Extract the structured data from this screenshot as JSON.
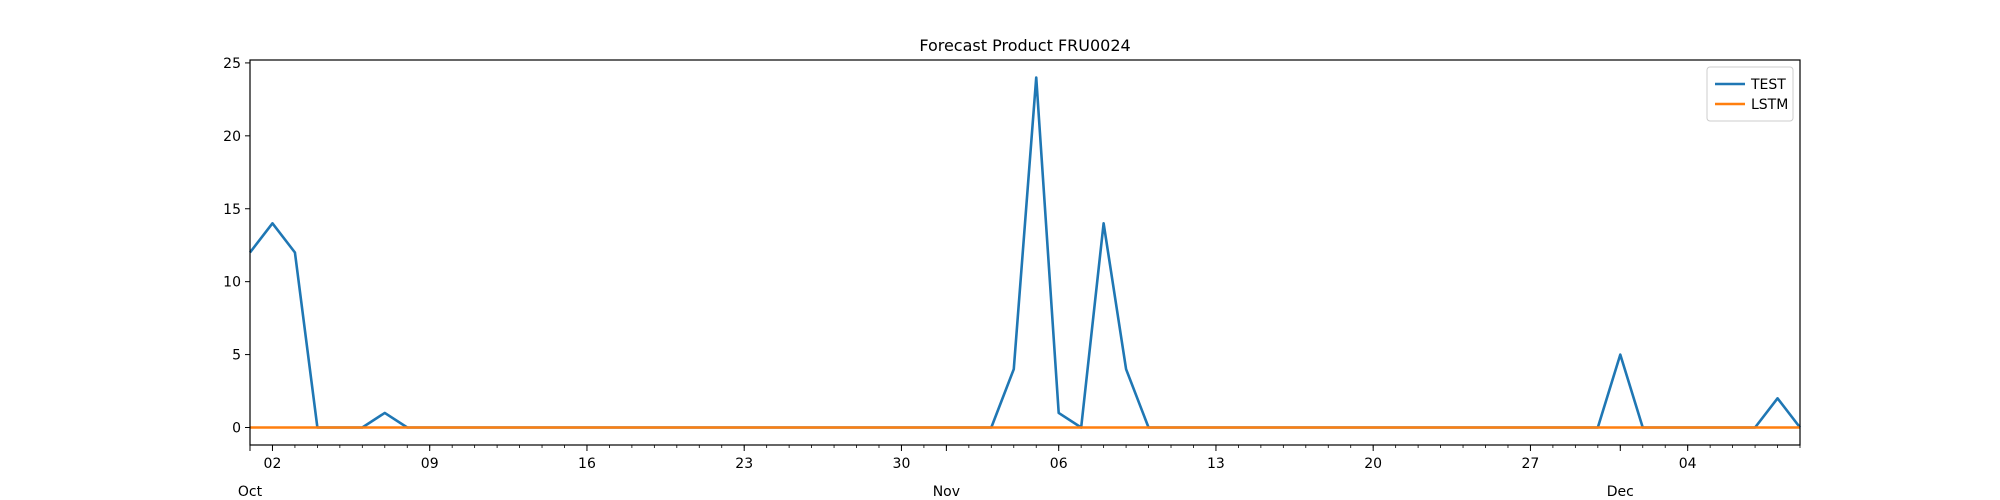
{
  "chart_data": {
    "type": "line",
    "title": "Forecast Product FRU0024",
    "xlabel": "",
    "ylabel": "",
    "x_start": "2023-10-01",
    "x_end": "2023-12-09",
    "xlim": [
      "2023-10-01",
      "2023-12-09"
    ],
    "ylim": [
      -1.2,
      25.2
    ],
    "y_ticks": [
      0,
      5,
      10,
      15,
      20,
      25
    ],
    "x_ticks": [
      {
        "date": "2023-10-02",
        "label": "02"
      },
      {
        "date": "2023-10-09",
        "label": "09"
      },
      {
        "date": "2023-10-16",
        "label": "16"
      },
      {
        "date": "2023-10-23",
        "label": "23"
      },
      {
        "date": "2023-10-30",
        "label": "30"
      },
      {
        "date": "2023-11-06",
        "label": "06"
      },
      {
        "date": "2023-11-13",
        "label": "13"
      },
      {
        "date": "2023-11-20",
        "label": "20"
      },
      {
        "date": "2023-11-27",
        "label": "27"
      },
      {
        "date": "2023-12-04",
        "label": "04"
      }
    ],
    "month_labels": [
      {
        "date": "2023-10-01",
        "label": "Oct"
      },
      {
        "date": "2023-11-01",
        "label": "Nov"
      },
      {
        "date": "2023-12-01",
        "label": "Dec"
      }
    ],
    "grid": false,
    "legend": "top-right",
    "series": [
      {
        "name": "TEST",
        "color": "#1f77b4",
        "values": [
          12,
          14,
          12,
          0,
          0,
          0,
          1,
          0,
          0,
          0,
          0,
          0,
          0,
          0,
          0,
          0,
          0,
          0,
          0,
          0,
          0,
          0,
          0,
          0,
          0,
          0,
          0,
          0,
          0,
          0,
          0,
          0,
          0,
          0,
          4,
          24,
          1,
          0,
          14,
          4,
          0,
          0,
          0,
          0,
          0,
          0,
          0,
          0,
          0,
          0,
          0,
          0,
          0,
          0,
          0,
          0,
          0,
          0,
          0,
          0,
          0,
          5,
          0,
          0,
          0,
          0,
          0,
          0,
          2,
          0
        ]
      },
      {
        "name": "LSTM",
        "color": "#ff7f0e",
        "values": [
          0,
          0,
          0,
          0,
          0,
          0,
          0,
          0,
          0,
          0,
          0,
          0,
          0,
          0,
          0,
          0,
          0,
          0,
          0,
          0,
          0,
          0,
          0,
          0,
          0,
          0,
          0,
          0,
          0,
          0,
          0,
          0,
          0,
          0,
          0,
          0,
          0,
          0,
          0,
          0,
          0,
          0,
          0,
          0,
          0,
          0,
          0,
          0,
          0,
          0,
          0,
          0,
          0,
          0,
          0,
          0,
          0,
          0,
          0,
          0,
          0,
          0,
          0,
          0,
          0,
          0,
          0,
          0,
          0,
          0
        ]
      }
    ]
  }
}
